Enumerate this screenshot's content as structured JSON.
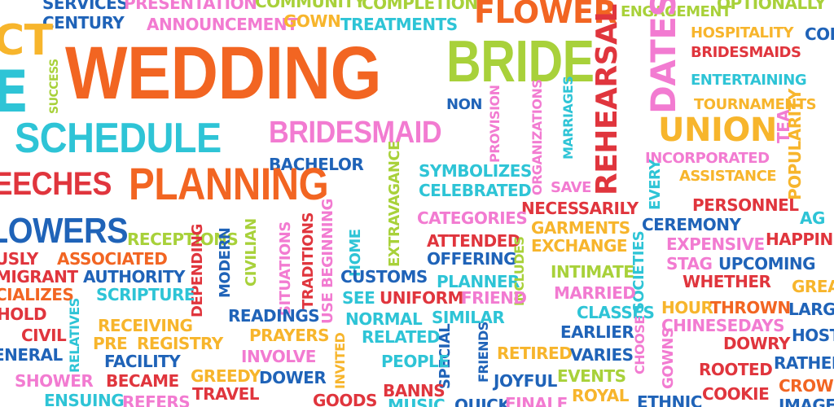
{
  "colors": {
    "orange": "#f26522",
    "cyan": "#2ec4d6",
    "pink": "#f27bd1",
    "blue": "#1f63b8",
    "lime": "#a8d13a",
    "red": "#e0353d",
    "gold": "#f7b52c"
  },
  "words": [
    {
      "text": "SERVICES"
    },
    {
      "text": "PRESENTATION"
    },
    {
      "text": "COMMUNITY"
    },
    {
      "text": "COMPLETION"
    },
    {
      "text": "ENGAGEMENT"
    },
    {
      "text": "OPTIONALLY"
    },
    {
      "text": "CENTURY"
    },
    {
      "text": "ANNOUNCEMENT"
    },
    {
      "text": "GOWN"
    },
    {
      "text": "TREATMENTS"
    },
    {
      "text": "FLOWER"
    },
    {
      "text": "CT"
    },
    {
      "text": "WEDDING"
    },
    {
      "text": "BRIDE"
    },
    {
      "text": "HOSPITALITY"
    },
    {
      "text": "COL"
    },
    {
      "text": "BRIDESMAIDS"
    },
    {
      "text": "E"
    },
    {
      "text": "SUCCESS"
    },
    {
      "text": "ENTERTAINING"
    },
    {
      "text": "TOURNAMENTS"
    },
    {
      "text": "NON"
    },
    {
      "text": "PROVISION"
    },
    {
      "text": "ORGANIZATIONS"
    },
    {
      "text": "MARRIAGES"
    },
    {
      "text": "REHEARSAL"
    },
    {
      "text": "DATES"
    },
    {
      "text": "UNION"
    },
    {
      "text": "TEA"
    },
    {
      "text": "SCHEDULE"
    },
    {
      "text": "BRIDESMAID"
    },
    {
      "text": "INCORPORATED"
    },
    {
      "text": "POPULARITY"
    },
    {
      "text": "BACHELOR"
    },
    {
      "text": "SYMBOLIZES"
    },
    {
      "text": "ASSISTANCE"
    },
    {
      "text": "PEECHES"
    },
    {
      "text": "PLANNING"
    },
    {
      "text": "EXTRAVAGANCE"
    },
    {
      "text": "CELEBRATED"
    },
    {
      "text": "SAVE"
    },
    {
      "text": "EVERY"
    },
    {
      "text": "PERSONNEL"
    },
    {
      "text": "NECESSARILY"
    },
    {
      "text": "AG"
    },
    {
      "text": "CATEGORIES"
    },
    {
      "text": "GARMENTS"
    },
    {
      "text": "CEREMONY"
    },
    {
      "text": "LOWERS"
    },
    {
      "text": "RECEPTIONS"
    },
    {
      "text": "ATTENDED"
    },
    {
      "text": "EXCHANGE"
    },
    {
      "text": "EXPENSIVE"
    },
    {
      "text": "HAPPINE"
    },
    {
      "text": "USLY"
    },
    {
      "text": "ASSOCIATED"
    },
    {
      "text": "CIVILIAN"
    },
    {
      "text": "HOME"
    },
    {
      "text": "OFFERING"
    },
    {
      "text": "SOCIETIES"
    },
    {
      "text": "STAG"
    },
    {
      "text": "UPCOMING"
    },
    {
      "text": "MIGRANT"
    },
    {
      "text": "AUTHORITY"
    },
    {
      "text": "DEPENDING"
    },
    {
      "text": "MODERN"
    },
    {
      "text": "SITUATIONS"
    },
    {
      "text": "TRADITIONS"
    },
    {
      "text": "USE BEGINNING"
    },
    {
      "text": "CUSTOMS"
    },
    {
      "text": "PLANNER"
    },
    {
      "text": "INCLUDES"
    },
    {
      "text": "INTIMATE"
    },
    {
      "text": "WHETHER"
    },
    {
      "text": "GREA"
    },
    {
      "text": "CIALIZES"
    },
    {
      "text": "SCRIPTURE"
    },
    {
      "text": "SEE"
    },
    {
      "text": "UNIFORM"
    },
    {
      "text": "FRIEND"
    },
    {
      "text": "MARRIED"
    },
    {
      "text": "HOUR"
    },
    {
      "text": "THROWN"
    },
    {
      "text": "LARG"
    },
    {
      "text": "HOLD"
    },
    {
      "text": "RELATIVES"
    },
    {
      "text": "READINGS"
    },
    {
      "text": "NORMAL"
    },
    {
      "text": "SIMILAR"
    },
    {
      "text": "CLASSES"
    },
    {
      "text": "CHINESE"
    },
    {
      "text": "DAYS"
    },
    {
      "text": "RECEIVING"
    },
    {
      "text": "PRAYERS"
    },
    {
      "text": "RELATED"
    },
    {
      "text": "EARLIER"
    },
    {
      "text": "DOWRY"
    },
    {
      "text": "HOST"
    },
    {
      "text": "CIVIL"
    },
    {
      "text": "PRE"
    },
    {
      "text": "REGISTRY"
    },
    {
      "text": "INVITED"
    },
    {
      "text": "SPECIAL"
    },
    {
      "text": "FRIENDS"
    },
    {
      "text": "CHOOSE"
    },
    {
      "text": "GOWNS"
    },
    {
      "text": "ENERAL"
    },
    {
      "text": "FACILITY"
    },
    {
      "text": "INVOLVE"
    },
    {
      "text": "PEOPLE"
    },
    {
      "text": "RETIRED"
    },
    {
      "text": "VARIES"
    },
    {
      "text": "RATHER"
    },
    {
      "text": "SHOWER"
    },
    {
      "text": "BECAME"
    },
    {
      "text": "GREEDY"
    },
    {
      "text": "DOWER"
    },
    {
      "text": "JOYFUL"
    },
    {
      "text": "EVENTS"
    },
    {
      "text": "ROOTED"
    },
    {
      "text": "TRAVEL"
    },
    {
      "text": "BANNS"
    },
    {
      "text": "COOKIE"
    },
    {
      "text": "CROWN"
    },
    {
      "text": "ENSUING"
    },
    {
      "text": "REFERS"
    },
    {
      "text": "GOODS"
    },
    {
      "text": "MUSIC"
    },
    {
      "text": "QUICK"
    },
    {
      "text": "FINALE"
    },
    {
      "text": "ROYAL"
    },
    {
      "text": "ETHNIC"
    },
    {
      "text": "IMAGE"
    }
  ]
}
